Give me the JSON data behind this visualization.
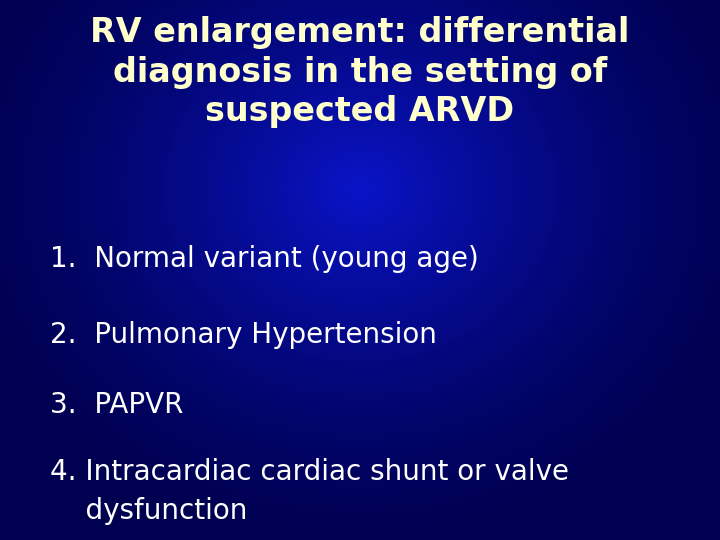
{
  "title_line1": "RV enlargement: differential",
  "title_line2": "diagnosis in the setting of",
  "title_line3": "suspected ARVD",
  "title_color": "#FFFFCC",
  "title_fontsize": 24,
  "items": [
    "1.  Normal variant (young age)",
    "2.  Pulmonary Hypertension",
    "3.  PAPVR",
    "4. Intracardiac cardiac shunt or valve\n    dysfunction"
  ],
  "item_color": "#FFFFFF",
  "item_fontsize": 20,
  "fig_width": 7.2,
  "fig_height": 5.4,
  "dpi": 100
}
